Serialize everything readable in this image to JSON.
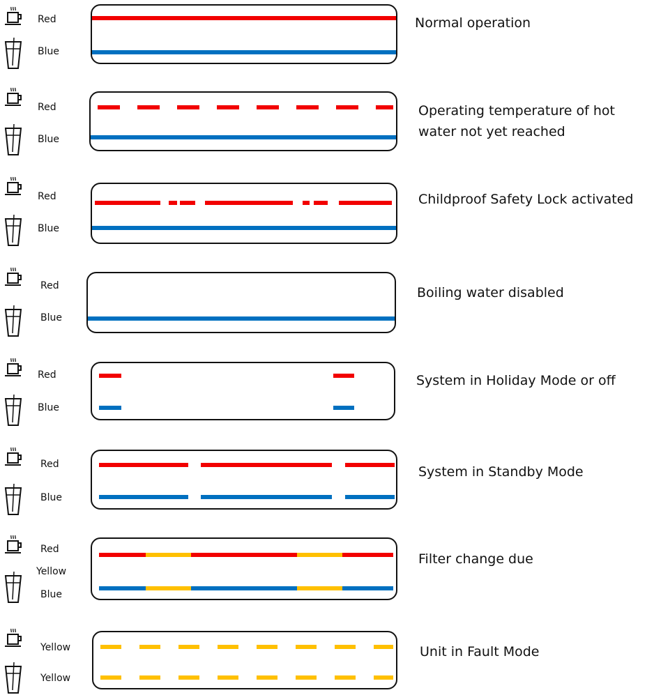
{
  "colors": {
    "red": "#f20000",
    "blue": "#0070c0",
    "yellow": "#ffc000",
    "outline": "#111111"
  },
  "icons": {
    "cup": "hot-cup-icon",
    "glass": "water-glass-icon"
  },
  "rows": [
    {
      "labels": [
        "Red",
        "Blue"
      ],
      "description": "Normal operation",
      "lights": [
        {
          "color": "red",
          "pattern": "solid"
        },
        {
          "color": "blue",
          "pattern": "solid"
        }
      ]
    },
    {
      "labels": [
        "Red",
        "Blue"
      ],
      "description": "Operating temperature of hot water not yet reached",
      "lights": [
        {
          "color": "red",
          "pattern": "dashed"
        },
        {
          "color": "blue",
          "pattern": "solid"
        }
      ]
    },
    {
      "labels": [
        "Red",
        "Blue"
      ],
      "description": "Childproof Safety Lock activated",
      "lights": [
        {
          "color": "red",
          "pattern": "long-short"
        },
        {
          "color": "blue",
          "pattern": "solid"
        }
      ]
    },
    {
      "labels": [
        "Red",
        "Blue"
      ],
      "description": "Boiling water disabled",
      "lights": [
        {
          "color": "blue",
          "pattern": "solid"
        }
      ]
    },
    {
      "labels": [
        "Red",
        "Blue"
      ],
      "description": "System in Holiday Mode or off",
      "lights": [
        {
          "color": "red",
          "pattern": "ends"
        },
        {
          "color": "blue",
          "pattern": "ends"
        }
      ]
    },
    {
      "labels": [
        "Red",
        "Blue"
      ],
      "description": "System in Standby Mode",
      "lights": [
        {
          "color": "red",
          "pattern": "three-segment"
        },
        {
          "color": "blue",
          "pattern": "three-segment"
        }
      ]
    },
    {
      "labels": [
        "Red",
        "Yellow",
        "Blue"
      ],
      "description": "Filter change due",
      "lights": [
        {
          "color": "red",
          "pattern": "alternating-yellow"
        },
        {
          "color": "blue",
          "pattern": "alternating-yellow"
        }
      ]
    },
    {
      "labels": [
        "Yellow",
        "Yellow"
      ],
      "description": "Unit in Fault Mode",
      "lights": [
        {
          "color": "yellow",
          "pattern": "dashed"
        },
        {
          "color": "yellow",
          "pattern": "dashed"
        }
      ]
    }
  ]
}
